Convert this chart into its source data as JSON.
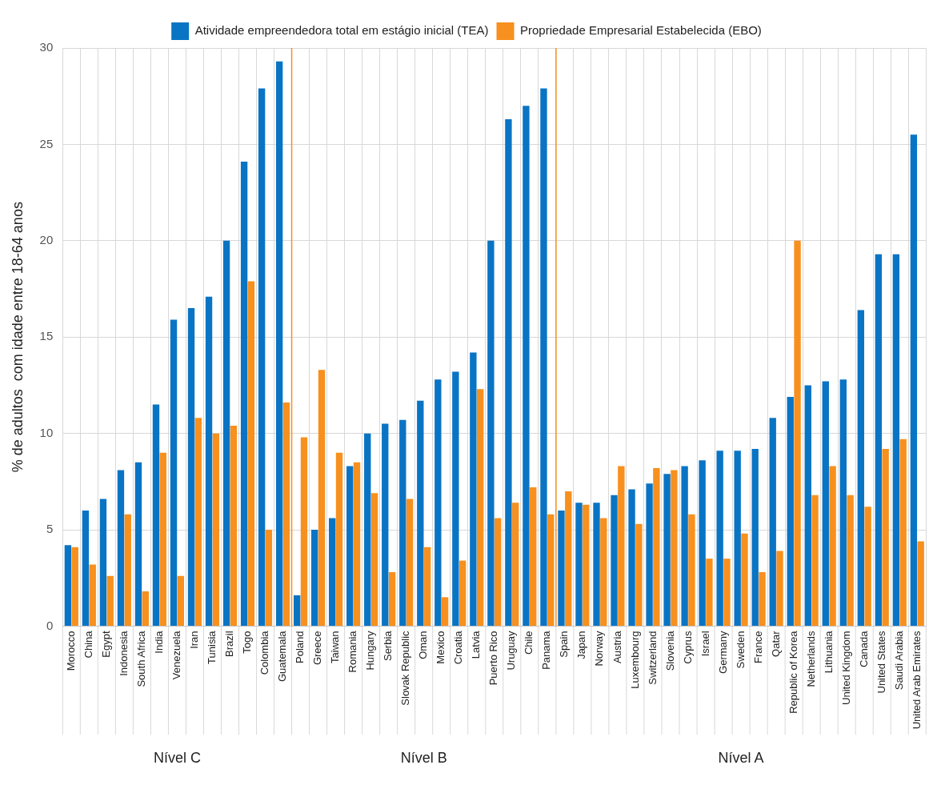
{
  "chart_data": {
    "type": "bar",
    "ylabel": "% de adultos  com idade entre 18-64 anos",
    "categories": [
      "Morocco",
      "China",
      "Egypt",
      "Indonesia",
      "South Africa",
      "India",
      "Venezuela",
      "Iran",
      "Tunisia",
      "Brazil",
      "Togo",
      "Colombia",
      "Guatemala",
      "Poland",
      "Greece",
      "Taiwan",
      "Romania",
      "Hungary",
      "Serbia",
      "Slovak Republic",
      "Oman",
      "Mexico",
      "Croatia",
      "Latvia",
      "Puerto Rico",
      "Uruguay",
      "Chile",
      "Panama",
      "Spain",
      "Japan",
      "Norway",
      "Austria",
      "Luxembourg",
      "Switzerland",
      "Slovenia",
      "Cyprus",
      "Israel",
      "Germany",
      "Sweden",
      "France",
      "Qatar",
      "Republic of Korea",
      "Netherlands",
      "Lithuania",
      "United Kingdom",
      "Canada",
      "United States",
      "Saudi Arabia",
      "United Arab Emirates"
    ],
    "series": [
      {
        "name": "Atividade empreendedora total em estágio inicial (TEA)",
        "color": "#0a74c4",
        "values": [
          4.2,
          6.0,
          6.6,
          8.1,
          8.5,
          11.5,
          15.9,
          16.5,
          17.1,
          20.0,
          24.1,
          27.9,
          29.3,
          1.6,
          5.0,
          5.6,
          8.3,
          10.0,
          10.5,
          10.7,
          11.7,
          12.8,
          13.2,
          14.2,
          20.0,
          26.3,
          27.0,
          27.9,
          6.0,
          6.4,
          6.4,
          6.8,
          7.1,
          7.4,
          7.9,
          8.3,
          8.6,
          9.1,
          9.1,
          9.2,
          10.8,
          11.9,
          12.5,
          12.7,
          12.8,
          16.4,
          19.3,
          19.3,
          25.5
        ]
      },
      {
        "name": "Propriedade Empresarial Estabelecida (EBO)",
        "color": "#f7901e",
        "values": [
          4.1,
          3.2,
          2.6,
          5.8,
          1.8,
          9.0,
          2.6,
          10.8,
          10.0,
          10.4,
          17.9,
          5.0,
          11.6,
          9.8,
          13.3,
          9.0,
          8.5,
          6.9,
          2.8,
          6.6,
          4.1,
          1.5,
          3.4,
          12.3,
          5.6,
          6.4,
          7.2,
          5.8,
          7.0,
          6.3,
          5.6,
          8.3,
          5.3,
          8.2,
          8.1,
          5.8,
          3.5,
          3.5,
          4.8,
          2.8,
          3.9,
          20.0,
          6.8,
          8.3,
          6.8,
          6.2,
          9.2,
          9.7,
          4.4
        ]
      }
    ],
    "ylim": [
      0,
      30
    ],
    "yticks": [
      0,
      5,
      10,
      15,
      20,
      25,
      30
    ],
    "grid": true,
    "legend": "top",
    "annotations": [
      "Nível C",
      "Nível B",
      "Nível A"
    ]
  }
}
